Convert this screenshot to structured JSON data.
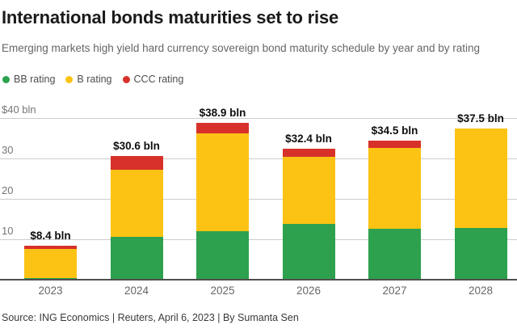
{
  "header": {
    "title": "International bonds maturities set to rise",
    "subtitle": "Emerging markets high yield hard currency sovereign bond maturity schedule by year and by rating"
  },
  "legend": {
    "items": [
      {
        "label": "BB rating",
        "color": "#2da14e"
      },
      {
        "label": "B rating",
        "color": "#fcc314"
      },
      {
        "label": "CCC rating",
        "color": "#d7312a"
      }
    ]
  },
  "chart_data": {
    "type": "bar",
    "stacked": true,
    "title": "International bonds maturities set to rise",
    "subtitle": "Emerging markets high yield hard currency sovereign bond maturity schedule by year and by rating",
    "unit": "$ bln",
    "categories": [
      "2023",
      "2024",
      "2025",
      "2026",
      "2027",
      "2028"
    ],
    "series": [
      {
        "name": "BB rating",
        "color": "#2da14e",
        "values": [
          0.5,
          10.6,
          12.0,
          13.8,
          12.6,
          12.8
        ]
      },
      {
        "name": "B rating",
        "color": "#fcc314",
        "values": [
          7.2,
          16.6,
          24.2,
          16.6,
          20.0,
          24.7
        ]
      },
      {
        "name": "CCC rating",
        "color": "#d7312a",
        "values": [
          0.7,
          3.4,
          2.7,
          2.0,
          1.9,
          0.0
        ]
      }
    ],
    "totals": [
      8.4,
      30.6,
      38.9,
      32.4,
      34.5,
      37.5
    ],
    "total_labels": [
      "$8.4 bln",
      "$30.6 bln",
      "$38.9 bln",
      "$32.4 bln",
      "$34.5 bln",
      "$37.5 bln"
    ],
    "ylim": [
      0,
      40
    ],
    "yticks": [
      {
        "value": 10,
        "label": "10"
      },
      {
        "value": 20,
        "label": "20"
      },
      {
        "value": 30,
        "label": "30"
      },
      {
        "value": 40,
        "label": "$40 bln"
      }
    ],
    "grid": true,
    "legend_position": "top-left"
  },
  "footer": {
    "source": "Source: ING Economics | Reuters, April 6, 2023 | By Sumanta Sen"
  }
}
